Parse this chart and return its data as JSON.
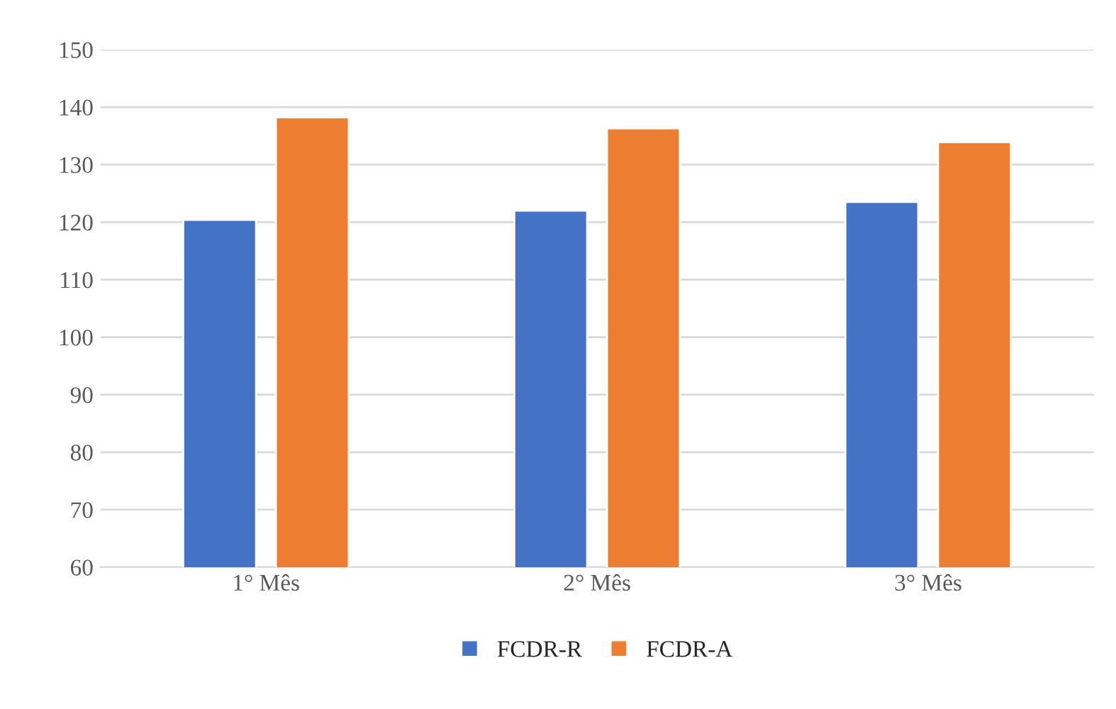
{
  "chart_data": {
    "type": "bar",
    "categories": [
      "1° Mês",
      "2° Mês",
      "3° Mês"
    ],
    "series": [
      {
        "name": "FCDR-R",
        "color": "#4472c4",
        "values": [
          120.4,
          122,
          123.5
        ]
      },
      {
        "name": "FCDR-A",
        "color": "#ed7d31",
        "values": [
          138.2,
          136.3,
          133.9
        ]
      }
    ],
    "ylim": [
      60,
      150
    ],
    "yticks": [
      60,
      70,
      80,
      90,
      100,
      110,
      120,
      130,
      140,
      150
    ],
    "grid": "y",
    "legend": "bottom"
  }
}
